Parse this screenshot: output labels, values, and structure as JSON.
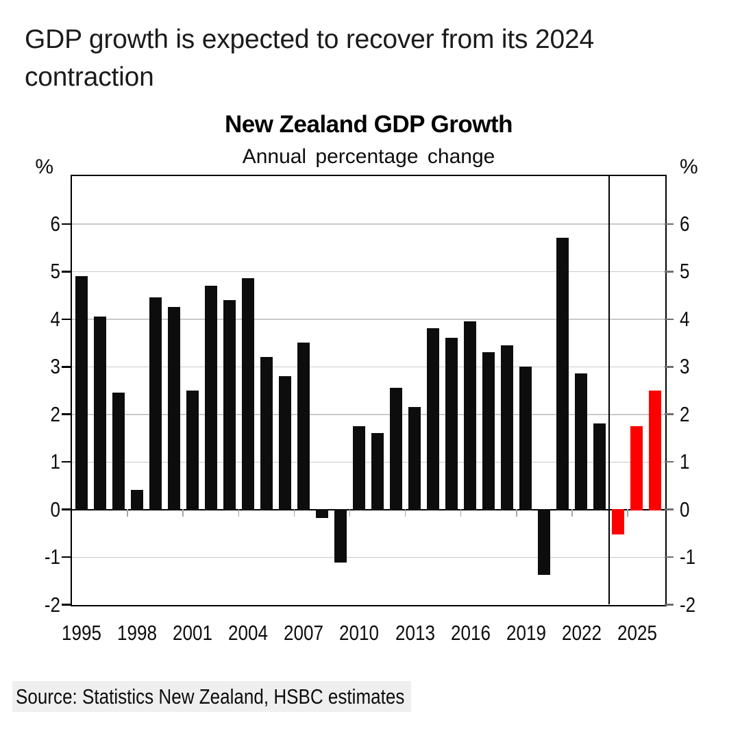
{
  "headline": "GDP growth is expected to recover from its 2024 contraction",
  "chart": {
    "title": "New Zealand GDP Growth",
    "subtitle": "Annual percentage change",
    "y_unit": "%"
  },
  "source": "Source: Statistics New Zealand, HSBC estimates",
  "colors": {
    "actual_bar": "#0d0d0d",
    "forecast_bar": "#fe0000",
    "gridline": "#c9c9c9",
    "zero_line": "#000000",
    "boundary_tick": "#a6a6a6",
    "left_tick": "#000000",
    "right_tick": "#6e6e6e",
    "divider": "#000000",
    "source_bg": "#efefef"
  },
  "chart_data": {
    "type": "bar",
    "title": "New Zealand GDP Growth",
    "subtitle": "Annual percentage change",
    "xlabel": "",
    "ylabel": "%",
    "ylim": [
      -2,
      7
    ],
    "yticks": [
      -2,
      -1,
      0,
      1,
      2,
      3,
      4,
      5,
      6
    ],
    "xtick_years": [
      1995,
      1998,
      2001,
      2004,
      2007,
      2010,
      2013,
      2016,
      2019,
      2022,
      2025
    ],
    "grid": "horizontal",
    "legend": "none",
    "forecast_start_year": 2024,
    "forecast_divider_after_year": 2023,
    "years": [
      1995,
      1996,
      1997,
      1998,
      1999,
      2000,
      2001,
      2002,
      2003,
      2004,
      2005,
      2006,
      2007,
      2008,
      2009,
      2010,
      2011,
      2012,
      2013,
      2014,
      2015,
      2016,
      2017,
      2018,
      2019,
      2020,
      2021,
      2022,
      2023,
      2024,
      2025,
      2026
    ],
    "values": [
      4.9,
      4.05,
      2.45,
      0.4,
      4.45,
      4.25,
      2.5,
      4.7,
      4.4,
      4.85,
      3.2,
      2.8,
      3.5,
      -0.15,
      -1.1,
      1.75,
      1.6,
      2.55,
      2.15,
      3.8,
      3.6,
      3.95,
      3.3,
      3.45,
      3.0,
      -1.35,
      5.7,
      2.85,
      1.8,
      -0.5,
      1.75,
      2.5
    ],
    "series": [
      {
        "name": "Actual (Statistics New Zealand)",
        "years_span": "1995-2023",
        "color": "#0d0d0d"
      },
      {
        "name": "HSBC estimates",
        "years_span": "2024-2026",
        "color": "#fe0000"
      }
    ]
  }
}
